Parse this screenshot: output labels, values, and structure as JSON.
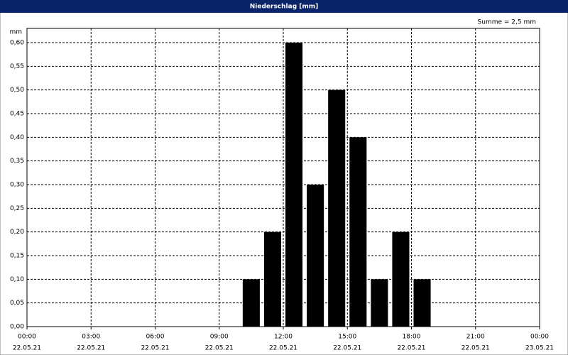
{
  "chart_data": {
    "type": "histogram",
    "title": "Niederschlag [mm]",
    "y_label": "mm",
    "annotation": "Summe = 2,5 mm",
    "bins": [
      10,
      11,
      12,
      13,
      14,
      15,
      16,
      17,
      18,
      19
    ],
    "values": [
      0.1,
      0.2,
      0.6,
      0.3,
      0.5,
      0.4,
      0.1,
      0.2,
      0.1
    ],
    "color": "#000000",
    "xlim": [
      0,
      24
    ],
    "xticks": [
      {
        "value": 0,
        "label": "00:00"
      },
      {
        "value": 3,
        "label": "03:00"
      },
      {
        "value": 6,
        "label": "06:00"
      },
      {
        "value": 9,
        "label": "09:00"
      },
      {
        "value": 12,
        "label": "12:00"
      },
      {
        "value": 15,
        "label": "15:00"
      },
      {
        "value": 18,
        "label": "18:00"
      },
      {
        "value": 21,
        "label": "21:00"
      },
      {
        "value": 24,
        "label": "00:00"
      }
    ],
    "xtick_dates": [
      "22.05.21",
      "22.05.21",
      "22.05.21",
      "22.05.21",
      "22.05.21",
      "22.05.21",
      "22.05.21",
      "22.05.21",
      "23.05.21"
    ],
    "ylim": [
      0,
      0.63
    ],
    "yticks": [
      {
        "value": 0,
        "label": "0,00"
      },
      {
        "value": 0.05,
        "label": "0,05"
      },
      {
        "value": 0.1,
        "label": "0,10"
      },
      {
        "value": 0.15,
        "label": "0,15"
      },
      {
        "value": 0.2,
        "label": "0,20"
      },
      {
        "value": 0.25,
        "label": "0,25"
      },
      {
        "value": 0.3,
        "label": "0,30"
      },
      {
        "value": 0.35,
        "label": "0,35"
      },
      {
        "value": 0.4,
        "label": "0,40"
      },
      {
        "value": 0.45,
        "label": "0,45"
      },
      {
        "value": 0.5,
        "label": "0,50"
      },
      {
        "value": 0.55,
        "label": "0,55"
      },
      {
        "value": 0.6,
        "label": "0,60"
      }
    ],
    "grid": true
  }
}
